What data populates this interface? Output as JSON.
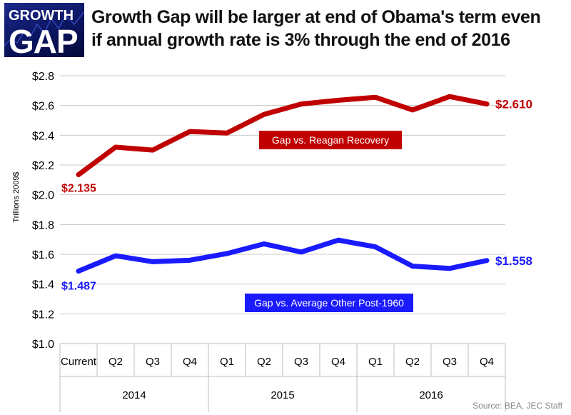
{
  "logo": {
    "line1": "GROWTH",
    "line2": "GAP"
  },
  "title": {
    "line1": "Growth Gap will be larger at end of Obama's term even",
    "line2": "if annual growth rate is 3% through the end of 2016"
  },
  "source": "Source:  BEA, JEC Staff",
  "chart_data": {
    "type": "line",
    "title": "Growth Gap will be larger at end of Obama's term even if annual growth rate is 3% through the end of 2016",
    "ylabel": "Trillions 2009$",
    "ylim": [
      1.0,
      2.8
    ],
    "y_ticks": [
      "$1.0",
      "$1.2",
      "$1.4",
      "$1.6",
      "$1.8",
      "$2.0",
      "$2.2",
      "$2.4",
      "$2.6",
      "$2.8"
    ],
    "categories": [
      "Current",
      "Q2",
      "Q3",
      "Q4",
      "Q1",
      "Q2",
      "Q3",
      "Q4",
      "Q1",
      "Q2",
      "Q3",
      "Q4"
    ],
    "groups": [
      {
        "label": "2014",
        "span": 4
      },
      {
        "label": "2015",
        "span": 4
      },
      {
        "label": "2016",
        "span": 4
      }
    ],
    "grid": true,
    "series": [
      {
        "name": "Gap vs. Reagan Recovery",
        "color": "#c00000",
        "values": [
          2.135,
          2.32,
          2.3,
          2.425,
          2.415,
          2.54,
          2.61,
          2.635,
          2.655,
          2.57,
          2.66,
          2.61
        ],
        "start_label": "$2.135",
        "end_label": "$2.610"
      },
      {
        "name": "Gap vs. Average Other Post-1960",
        "color": "#1a1aff",
        "values": [
          1.487,
          1.59,
          1.55,
          1.56,
          1.605,
          1.67,
          1.615,
          1.695,
          1.65,
          1.52,
          1.505,
          1.558
        ],
        "start_label": "$1.487",
        "end_label": "$1.558"
      }
    ]
  }
}
